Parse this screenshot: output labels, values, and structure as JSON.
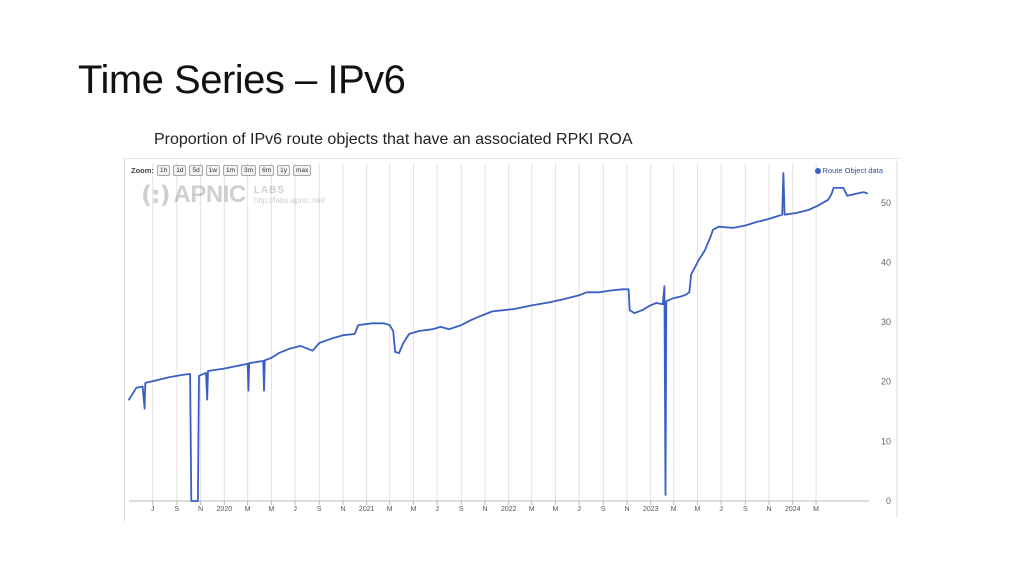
{
  "slide": {
    "title": "Time Series – IPv6",
    "subtitle": "Proportion of IPv6 route objects that have an associated RPKI ROA"
  },
  "toolbar": {
    "zoom_label": "Zoom:",
    "zoom_buttons": [
      "1h",
      "1d",
      "5d",
      "1w",
      "1m",
      "3m",
      "6m",
      "1y",
      "max"
    ]
  },
  "watermark": {
    "mark": "(:)",
    "name": "APNIC",
    "labs": "LABS",
    "url": "http://labs.apnic.net/"
  },
  "colors": {
    "series": "#3a5fc4",
    "grid": "#e2e2e2",
    "axis": "#bbbbbb"
  },
  "chart_data": {
    "type": "line",
    "title": "",
    "xlabel": "",
    "ylabel": "",
    "ylim": [
      0,
      55
    ],
    "x_range": [
      "2019-05-01",
      "2024-07-15"
    ],
    "grid": true,
    "legend_position": "top-right",
    "y_ticks": [
      0,
      10,
      20,
      30,
      40,
      50
    ],
    "x_tick_labels": [
      {
        "date": "2019-07-01",
        "label": "J"
      },
      {
        "date": "2019-09-01",
        "label": "S"
      },
      {
        "date": "2019-11-01",
        "label": "N"
      },
      {
        "date": "2020-01-01",
        "label": "2020"
      },
      {
        "date": "2020-03-01",
        "label": "M"
      },
      {
        "date": "2020-05-01",
        "label": "M"
      },
      {
        "date": "2020-07-01",
        "label": "J"
      },
      {
        "date": "2020-09-01",
        "label": "S"
      },
      {
        "date": "2020-11-01",
        "label": "N"
      },
      {
        "date": "2021-01-01",
        "label": "2021"
      },
      {
        "date": "2021-03-01",
        "label": "M"
      },
      {
        "date": "2021-05-01",
        "label": "M"
      },
      {
        "date": "2021-07-01",
        "label": "J"
      },
      {
        "date": "2021-09-01",
        "label": "S"
      },
      {
        "date": "2021-11-01",
        "label": "N"
      },
      {
        "date": "2022-01-01",
        "label": "2022"
      },
      {
        "date": "2022-03-01",
        "label": "M"
      },
      {
        "date": "2022-05-01",
        "label": "M"
      },
      {
        "date": "2022-07-01",
        "label": "J"
      },
      {
        "date": "2022-09-01",
        "label": "S"
      },
      {
        "date": "2022-11-01",
        "label": "N"
      },
      {
        "date": "2023-01-01",
        "label": "2023"
      },
      {
        "date": "2023-03-01",
        "label": "M"
      },
      {
        "date": "2023-05-01",
        "label": "M"
      },
      {
        "date": "2023-07-01",
        "label": "J"
      },
      {
        "date": "2023-09-01",
        "label": "S"
      },
      {
        "date": "2023-11-01",
        "label": "N"
      },
      {
        "date": "2024-01-01",
        "label": "2024"
      },
      {
        "date": "2024-03-01",
        "label": "M"
      }
    ],
    "series": [
      {
        "name": "Route Object data",
        "points": [
          [
            "2019-05-01",
            17.0
          ],
          [
            "2019-05-20",
            19.0
          ],
          [
            "2019-06-05",
            19.2
          ],
          [
            "2019-06-10",
            15.5
          ],
          [
            "2019-06-12",
            19.8
          ],
          [
            "2019-07-15",
            20.3
          ],
          [
            "2019-08-15",
            20.8
          ],
          [
            "2019-09-20",
            21.2
          ],
          [
            "2019-10-05",
            21.3
          ],
          [
            "2019-10-08",
            0.0
          ],
          [
            "2019-10-25",
            0.0
          ],
          [
            "2019-10-28",
            21.0
          ],
          [
            "2019-11-15",
            21.5
          ],
          [
            "2019-11-18",
            17.0
          ],
          [
            "2019-11-20",
            21.8
          ],
          [
            "2019-12-31",
            22.2
          ],
          [
            "2020-02-15",
            22.8
          ],
          [
            "2020-03-01",
            23.0
          ],
          [
            "2020-03-03",
            18.5
          ],
          [
            "2020-03-05",
            23.1
          ],
          [
            "2020-04-10",
            23.5
          ],
          [
            "2020-04-12",
            18.5
          ],
          [
            "2020-04-14",
            23.6
          ],
          [
            "2020-05-01",
            24.0
          ],
          [
            "2020-05-20",
            24.8
          ],
          [
            "2020-06-15",
            25.5
          ],
          [
            "2020-07-15",
            26.0
          ],
          [
            "2020-08-15",
            25.2
          ],
          [
            "2020-09-01",
            26.5
          ],
          [
            "2020-10-01",
            27.2
          ],
          [
            "2020-11-01",
            27.8
          ],
          [
            "2020-12-01",
            28.0
          ],
          [
            "2020-12-10",
            29.5
          ],
          [
            "2021-01-15",
            29.8
          ],
          [
            "2021-02-15",
            29.8
          ],
          [
            "2021-03-01",
            29.5
          ],
          [
            "2021-03-10",
            28.5
          ],
          [
            "2021-03-15",
            25.0
          ],
          [
            "2021-03-25",
            24.8
          ],
          [
            "2021-04-05",
            26.5
          ],
          [
            "2021-04-20",
            28.0
          ],
          [
            "2021-05-15",
            28.5
          ],
          [
            "2021-06-20",
            28.8
          ],
          [
            "2021-07-10",
            29.2
          ],
          [
            "2021-08-01",
            28.8
          ],
          [
            "2021-09-01",
            29.5
          ],
          [
            "2021-09-25",
            30.3
          ],
          [
            "2021-10-20",
            31.0
          ],
          [
            "2021-11-20",
            31.8
          ],
          [
            "2022-01-15",
            32.2
          ],
          [
            "2022-03-01",
            32.8
          ],
          [
            "2022-04-15",
            33.3
          ],
          [
            "2022-05-20",
            33.8
          ],
          [
            "2022-07-01",
            34.5
          ],
          [
            "2022-07-20",
            35.0
          ],
          [
            "2022-08-20",
            35.0
          ],
          [
            "2022-09-20",
            35.3
          ],
          [
            "2022-10-20",
            35.5
          ],
          [
            "2022-11-05",
            35.5
          ],
          [
            "2022-11-08",
            32.0
          ],
          [
            "2022-11-20",
            31.5
          ],
          [
            "2022-12-10",
            32.0
          ],
          [
            "2022-12-31",
            32.8
          ],
          [
            "2023-01-15",
            33.2
          ],
          [
            "2023-02-01",
            33.0
          ],
          [
            "2023-02-05",
            36.0
          ],
          [
            "2023-02-08",
            1.0
          ],
          [
            "2023-02-10",
            33.5
          ],
          [
            "2023-02-28",
            34.0
          ],
          [
            "2023-03-20",
            34.3
          ],
          [
            "2023-04-01",
            34.6
          ],
          [
            "2023-04-10",
            35.0
          ],
          [
            "2023-04-15",
            38.0
          ],
          [
            "2023-05-05",
            40.5
          ],
          [
            "2023-05-20",
            42.0
          ],
          [
            "2023-06-05",
            44.5
          ],
          [
            "2023-06-10",
            45.5
          ],
          [
            "2023-06-25",
            46.0
          ],
          [
            "2023-08-01",
            45.8
          ],
          [
            "2023-09-01",
            46.2
          ],
          [
            "2023-10-01",
            46.8
          ],
          [
            "2023-11-01",
            47.3
          ],
          [
            "2023-11-25",
            47.8
          ],
          [
            "2023-12-05",
            48.0
          ],
          [
            "2023-12-08",
            55.0
          ],
          [
            "2023-12-11",
            48.0
          ],
          [
            "2024-01-10",
            48.3
          ],
          [
            "2024-02-10",
            48.8
          ],
          [
            "2024-03-05",
            49.5
          ],
          [
            "2024-04-01",
            50.5
          ],
          [
            "2024-04-10",
            51.5
          ],
          [
            "2024-04-15",
            52.5
          ],
          [
            "2024-05-10",
            52.5
          ],
          [
            "2024-05-20",
            51.2
          ],
          [
            "2024-06-10",
            51.5
          ],
          [
            "2024-07-01",
            51.8
          ],
          [
            "2024-07-10",
            51.6
          ]
        ]
      }
    ]
  }
}
